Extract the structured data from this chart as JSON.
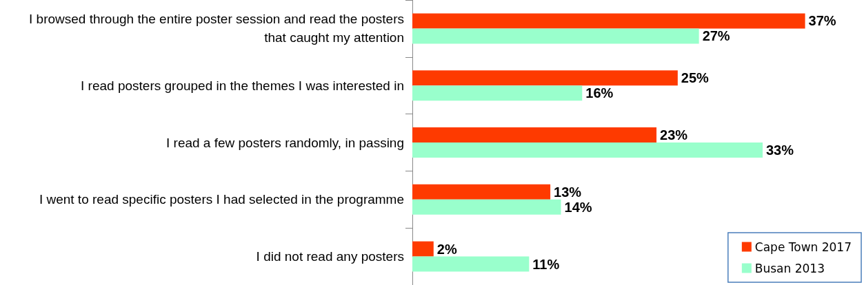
{
  "chart_data": {
    "type": "bar",
    "orientation": "horizontal",
    "legend": "bottom right",
    "categories": [
      "I browsed through the entire poster session and read the posters that caught my attention",
      "I read posters grouped in the themes I was interested in",
      "I read a few posters randomly, in passing",
      "I went to read specific posters I had selected in the programme",
      "I did not read any posters"
    ],
    "series": [
      {
        "name": "Cape Town 2017",
        "color": "#fe3a00",
        "values": [
          37,
          25,
          23,
          13,
          2
        ],
        "value_labels": [
          "37%",
          "25%",
          "23%",
          "13%",
          "2%"
        ]
      },
      {
        "name": "Busan 2013",
        "color": "#99ffcc",
        "values": [
          27,
          16,
          33,
          14,
          11
        ],
        "value_labels": [
          "27%",
          "16%",
          "33%",
          "14%",
          "11%"
        ]
      }
    ]
  }
}
